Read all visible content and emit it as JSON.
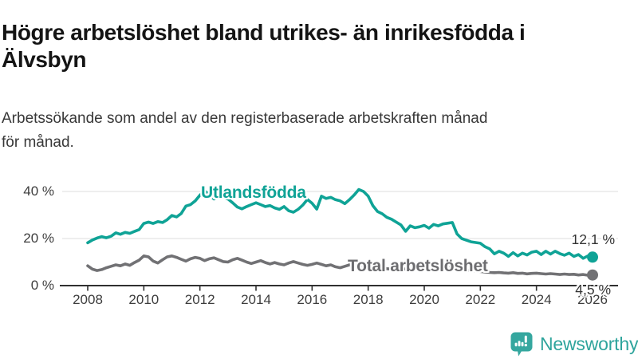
{
  "title": {
    "line1": "Högre arbetslöshet bland utrikes- än inrikesfödda i",
    "line2": "Älvsbyn"
  },
  "subtitle": {
    "line1": "Arbetssökande som andel av den registerbaserade arbetskraften månad",
    "line2": "för månad."
  },
  "chart_data": {
    "type": "line",
    "unit": "%",
    "x_start": 2008,
    "x_end": 2026,
    "x_step_months": 2,
    "ylim": [
      0,
      44
    ],
    "grid": "horizontal",
    "yticks": [
      {
        "v": 0,
        "label": "0 %"
      },
      {
        "v": 20,
        "label": "20 %"
      },
      {
        "v": 40,
        "label": "40 %"
      }
    ],
    "xticks": [
      "2008",
      "2010",
      "2012",
      "2014",
      "2016",
      "2018",
      "2020",
      "2022",
      "2024",
      "2026"
    ],
    "series": [
      {
        "name": "Utlandsfödda",
        "color": "#0fa396",
        "end_label": "12,1 %",
        "end_value": 12.1,
        "values": [
          18.2,
          19.4,
          20.2,
          20.8,
          20.3,
          21.0,
          22.4,
          21.8,
          22.6,
          22.2,
          23.0,
          23.8,
          26.4,
          27.0,
          26.4,
          27.2,
          26.8,
          28.0,
          29.8,
          29.2,
          30.6,
          33.8,
          34.4,
          36.0,
          38.4,
          40.3,
          38.6,
          36.8,
          38.2,
          37.6,
          36.8,
          35.2,
          33.4,
          32.6,
          33.6,
          34.4,
          35.2,
          34.4,
          33.6,
          34.0,
          33.0,
          32.4,
          33.6,
          31.8,
          31.2,
          32.4,
          34.2,
          36.6,
          35.0,
          32.5,
          38.0,
          37.0,
          37.5,
          36.5,
          36.0,
          34.8,
          36.5,
          38.5,
          40.8,
          40.0,
          38.0,
          34.0,
          31.5,
          30.5,
          29.0,
          28.2,
          27.0,
          25.8,
          23.1,
          25.4,
          24.6,
          25.0,
          25.6,
          24.4,
          26.0,
          25.4,
          26.2,
          26.5,
          26.8,
          22.0,
          20.0,
          19.3,
          18.6,
          18.3,
          18.0,
          16.5,
          15.6,
          13.5,
          14.6,
          13.8,
          12.4,
          14.0,
          12.6,
          13.8,
          13.0,
          14.2,
          14.6,
          13.2,
          14.6,
          13.4,
          14.6,
          13.6,
          12.9,
          13.8,
          12.4,
          13.2,
          11.6,
          12.6,
          12.1
        ]
      },
      {
        "name": "Total arbetslöshet",
        "color": "#717174",
        "end_label": "4,5 %",
        "end_value": 4.5,
        "values": [
          8.4,
          7.0,
          6.4,
          6.8,
          7.6,
          8.2,
          8.8,
          8.4,
          9.2,
          8.6,
          9.8,
          10.8,
          12.6,
          12.2,
          10.4,
          9.6,
          11.0,
          12.2,
          12.6,
          12.0,
          11.2,
          10.4,
          11.4,
          12.0,
          11.6,
          10.6,
          11.4,
          11.8,
          11.0,
          10.2,
          10.0,
          11.0,
          11.6,
          10.8,
          10.0,
          9.4,
          10.0,
          10.6,
          9.8,
          9.2,
          9.8,
          9.2,
          8.8,
          9.6,
          10.2,
          9.6,
          9.0,
          8.6,
          9.0,
          9.6,
          9.0,
          8.4,
          8.8,
          8.0,
          7.6,
          8.2,
          8.8,
          8.4,
          7.8,
          7.4,
          7.4,
          7.8,
          8.0,
          7.6,
          7.2,
          7.0,
          7.2,
          7.4,
          7.0,
          6.8,
          7.2,
          7.6,
          8.0,
          8.6,
          8.8,
          8.4,
          8.0,
          7.8,
          7.8,
          7.4,
          7.0,
          6.6,
          6.4,
          6.2,
          6.0,
          5.8,
          5.6,
          5.5,
          5.6,
          5.4,
          5.3,
          5.5,
          5.2,
          5.3,
          5.0,
          5.2,
          5.3,
          5.1,
          4.9,
          5.1,
          4.9,
          4.7,
          4.9,
          4.7,
          4.8,
          4.5,
          4.7,
          4.4,
          4.5
        ]
      }
    ]
  },
  "branding": {
    "logo_text": "Newsworthy",
    "logo_icon": "newsworthy-chart-bubble-icon",
    "accent_color": "#2ea49c"
  }
}
